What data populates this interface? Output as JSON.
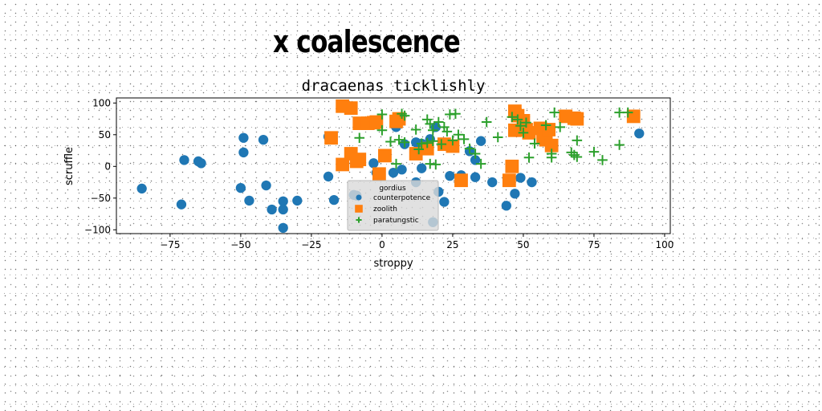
{
  "page": {
    "title": "x coalescence"
  },
  "chart_data": {
    "type": "scatter",
    "title": "dracaenas ticklishly",
    "xlabel": "stroppy",
    "ylabel": "scruffle",
    "xlim": [
      -94,
      102
    ],
    "ylim": [
      -106,
      108
    ],
    "xticks": [
      -75,
      -50,
      -25,
      0,
      25,
      50,
      75,
      100
    ],
    "yticks": [
      -100,
      -50,
      0,
      50,
      100
    ],
    "grid": false,
    "legend": {
      "title": "gordius",
      "placement": "lower-center"
    },
    "series": [
      {
        "name": "counterpotence",
        "marker": "circle",
        "color": "#1f77b4",
        "points": [
          [
            -85,
            -35
          ],
          [
            -71,
            -60
          ],
          [
            -70,
            10
          ],
          [
            -65,
            8
          ],
          [
            -64,
            5
          ],
          [
            -50,
            -34
          ],
          [
            -49,
            45
          ],
          [
            -49,
            22
          ],
          [
            -47,
            -54
          ],
          [
            -42,
            42
          ],
          [
            -41,
            -30
          ],
          [
            -39,
            -68
          ],
          [
            -35,
            -55
          ],
          [
            -35,
            -68
          ],
          [
            -35,
            -97
          ],
          [
            -30,
            -54
          ],
          [
            -19,
            47
          ],
          [
            -19,
            -16
          ],
          [
            -17,
            -53
          ],
          [
            -10,
            -45
          ],
          [
            -9,
            -46
          ],
          [
            -3,
            5
          ],
          [
            -2,
            -10
          ],
          [
            4,
            -10
          ],
          [
            5,
            62
          ],
          [
            7,
            -5
          ],
          [
            8,
            35
          ],
          [
            12,
            38
          ],
          [
            12,
            -25
          ],
          [
            14,
            -3
          ],
          [
            14,
            36
          ],
          [
            17,
            43
          ],
          [
            18,
            -88
          ],
          [
            19,
            62
          ],
          [
            20,
            -40
          ],
          [
            22,
            -56
          ],
          [
            24,
            -15
          ],
          [
            28,
            -14
          ],
          [
            31,
            24
          ],
          [
            33,
            -17
          ],
          [
            33,
            10
          ],
          [
            35,
            40
          ],
          [
            39,
            -25
          ],
          [
            44,
            -62
          ],
          [
            47,
            -43
          ],
          [
            49,
            -18
          ],
          [
            53,
            -25
          ],
          [
            91,
            52
          ]
        ]
      },
      {
        "name": "zoolith",
        "marker": "square",
        "color": "#ff7f0e",
        "points": [
          [
            -18,
            45
          ],
          [
            -14,
            95
          ],
          [
            -14,
            3
          ],
          [
            -11,
            92
          ],
          [
            -11,
            20
          ],
          [
            -9,
            8
          ],
          [
            -8,
            11
          ],
          [
            -8,
            68
          ],
          [
            -5,
            68
          ],
          [
            -3,
            69
          ],
          [
            -2,
            70
          ],
          [
            -1,
            -12
          ],
          [
            1,
            17
          ],
          [
            5,
            71
          ],
          [
            6,
            75
          ],
          [
            12,
            20
          ],
          [
            16,
            28
          ],
          [
            22,
            35
          ],
          [
            25,
            32
          ],
          [
            28,
            -22
          ],
          [
            45,
            -22
          ],
          [
            46,
            0
          ],
          [
            47,
            87
          ],
          [
            47,
            57
          ],
          [
            48,
            80
          ],
          [
            50,
            72
          ],
          [
            51,
            58
          ],
          [
            52,
            53
          ],
          [
            56,
            60
          ],
          [
            57,
            45
          ],
          [
            58,
            42
          ],
          [
            59,
            58
          ],
          [
            60,
            33
          ],
          [
            65,
            79
          ],
          [
            68,
            76
          ],
          [
            69,
            75
          ],
          [
            89,
            79
          ]
        ]
      },
      {
        "name": "paratungstic",
        "marker": "plus",
        "color": "#2ca02c",
        "points": [
          [
            -8,
            45
          ],
          [
            0,
            82
          ],
          [
            0,
            57
          ],
          [
            3,
            39
          ],
          [
            5,
            4
          ],
          [
            6,
            42
          ],
          [
            7,
            83
          ],
          [
            8,
            80
          ],
          [
            8,
            38
          ],
          [
            12,
            58
          ],
          [
            13,
            27
          ],
          [
            14,
            36
          ],
          [
            16,
            74
          ],
          [
            16,
            37
          ],
          [
            17,
            67
          ],
          [
            17,
            4
          ],
          [
            18,
            57
          ],
          [
            18,
            40
          ],
          [
            19,
            3
          ],
          [
            20,
            70
          ],
          [
            21,
            35
          ],
          [
            22,
            62
          ],
          [
            23,
            55
          ],
          [
            24,
            82
          ],
          [
            25,
            41
          ],
          [
            26,
            83
          ],
          [
            27,
            50
          ],
          [
            29,
            43
          ],
          [
            31,
            28
          ],
          [
            33,
            20
          ],
          [
            35,
            4
          ],
          [
            37,
            70
          ],
          [
            41,
            46
          ],
          [
            46,
            78
          ],
          [
            48,
            74
          ],
          [
            49,
            64
          ],
          [
            50,
            53
          ],
          [
            51,
            69
          ],
          [
            52,
            14
          ],
          [
            54,
            36
          ],
          [
            58,
            65
          ],
          [
            60,
            14
          ],
          [
            60,
            20
          ],
          [
            61,
            85
          ],
          [
            63,
            62
          ],
          [
            67,
            22
          ],
          [
            68,
            18
          ],
          [
            69,
            15
          ],
          [
            69,
            41
          ],
          [
            75,
            23
          ],
          [
            78,
            10
          ],
          [
            84,
            34
          ],
          [
            84,
            85
          ],
          [
            87,
            85
          ]
        ]
      }
    ]
  }
}
